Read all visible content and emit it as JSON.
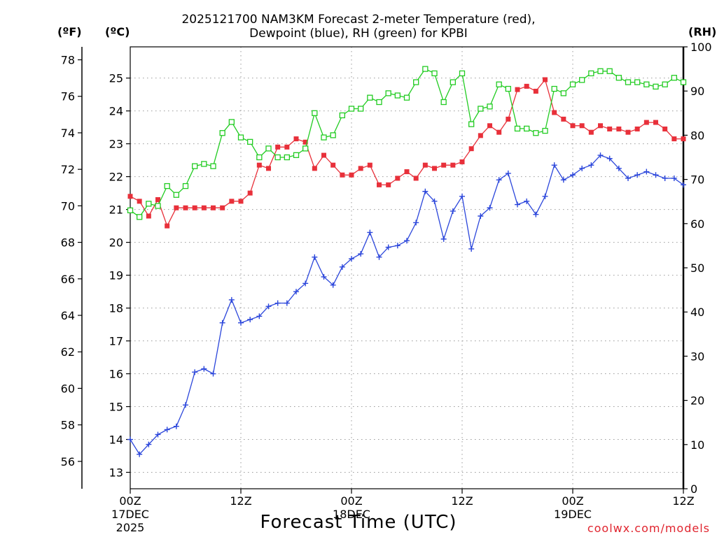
{
  "title_line1": "2025121700 NAM3KM Forecast 2-meter Temperature (red),",
  "title_line2": "Dewpoint (blue), RH (green) for KPBI",
  "unit_f": "(ºF)",
  "unit_c": "(ºC)",
  "unit_rh": "(RH)",
  "xlabel": "Forecast Time (UTC)",
  "credit": "coolwx.com/models",
  "chart_data": {
    "type": "line",
    "title": "2025121700 NAM3KM Forecast 2-meter Temperature (red), Dewpoint (blue), RH (green) for KPBI",
    "xlabel": "Forecast Time (UTC)",
    "x_unit": "forecast hour from 2025-12-17 00Z",
    "xlim": [
      0,
      60
    ],
    "x_ticks": [
      {
        "x": 0,
        "label": "00Z",
        "sub1": "17DEC",
        "sub2": "2025"
      },
      {
        "x": 12,
        "label": "12Z",
        "sub1": "",
        "sub2": ""
      },
      {
        "x": 24,
        "label": "00Z",
        "sub1": "18DEC",
        "sub2": ""
      },
      {
        "x": 36,
        "label": "12Z",
        "sub1": "",
        "sub2": ""
      },
      {
        "x": 48,
        "label": "00Z",
        "sub1": "19DEC",
        "sub2": ""
      },
      {
        "x": 60,
        "label": "12Z",
        "sub1": "",
        "sub2": ""
      }
    ],
    "axes": {
      "celsius": {
        "label": "(ºC)",
        "ylim": [
          12.5,
          25.95
        ],
        "ticks": [
          13,
          14,
          15,
          16,
          17,
          18,
          19,
          20,
          21,
          22,
          23,
          24,
          25
        ]
      },
      "fahrenheit": {
        "label": "(ºF)",
        "ylim": [
          54.5,
          78.71
        ],
        "ticks": [
          56,
          58,
          60,
          62,
          64,
          66,
          68,
          70,
          72,
          74,
          76,
          78
        ]
      },
      "rh": {
        "label": "(RH)",
        "ylim": [
          0,
          100
        ],
        "ticks": [
          0,
          10,
          20,
          30,
          40,
          50,
          60,
          70,
          80,
          90,
          100
        ]
      }
    },
    "grid": true,
    "series": [
      {
        "name": "Temperature",
        "color": "#e8303a",
        "marker": "filled-square",
        "axis": "celsius",
        "x": [
          0,
          1,
          2,
          3,
          4,
          5,
          6,
          7,
          8,
          9,
          10,
          11,
          12,
          13,
          14,
          15,
          16,
          17,
          18,
          19,
          20,
          21,
          22,
          23,
          24,
          25,
          26,
          27,
          28,
          29,
          30,
          31,
          32,
          33,
          34,
          35,
          36,
          37,
          38,
          39,
          40,
          41,
          42,
          43,
          44,
          45,
          46,
          47,
          48,
          49,
          50,
          51,
          52,
          53,
          54,
          55,
          56,
          57,
          58,
          59,
          60
        ],
        "values": [
          21.4,
          21.25,
          20.8,
          21.3,
          20.5,
          21.05,
          21.05,
          21.05,
          21.05,
          21.05,
          21.05,
          21.25,
          21.25,
          21.5,
          22.35,
          22.25,
          22.9,
          22.9,
          23.15,
          23.05,
          22.25,
          22.65,
          22.35,
          22.05,
          22.05,
          22.25,
          22.35,
          21.75,
          21.75,
          21.95,
          22.15,
          21.95,
          22.35,
          22.25,
          22.35,
          22.35,
          22.45,
          22.85,
          23.25,
          23.55,
          23.35,
          23.75,
          24.65,
          24.75,
          24.6,
          24.95,
          23.95,
          23.75,
          23.55,
          23.55,
          23.35,
          23.55,
          23.45,
          23.45,
          23.35,
          23.45,
          23.65,
          23.65,
          23.45,
          23.15,
          23.15
        ]
      },
      {
        "name": "Dewpoint",
        "color": "#2b46db",
        "marker": "plus",
        "axis": "celsius",
        "x": [
          0,
          1,
          2,
          3,
          4,
          5,
          6,
          7,
          8,
          9,
          10,
          11,
          12,
          13,
          14,
          15,
          16,
          17,
          18,
          19,
          20,
          21,
          22,
          23,
          24,
          25,
          26,
          27,
          28,
          29,
          30,
          31,
          32,
          33,
          34,
          35,
          36,
          37,
          38,
          39,
          40,
          41,
          42,
          43,
          44,
          45,
          46,
          47,
          48,
          49,
          50,
          51,
          52,
          53,
          54,
          55,
          56,
          57,
          58,
          59,
          60
        ],
        "values": [
          14.0,
          13.55,
          13.85,
          14.15,
          14.3,
          14.4,
          15.05,
          16.05,
          16.15,
          16.0,
          17.55,
          18.25,
          17.55,
          17.65,
          17.75,
          18.05,
          18.15,
          18.15,
          18.5,
          18.75,
          19.55,
          18.95,
          18.7,
          19.25,
          19.5,
          19.65,
          20.3,
          19.55,
          19.85,
          19.9,
          20.05,
          20.6,
          21.55,
          21.25,
          20.1,
          20.95,
          21.4,
          19.8,
          20.8,
          21.05,
          21.9,
          22.1,
          21.15,
          21.25,
          20.85,
          21.4,
          22.35,
          21.9,
          22.05,
          22.25,
          22.35,
          22.65,
          22.55,
          22.25,
          21.95,
          22.05,
          22.15,
          22.05,
          21.95,
          21.95,
          21.75
        ]
      },
      {
        "name": "RH",
        "color": "#22cc22",
        "marker": "open-square",
        "axis": "rh",
        "x": [
          0,
          1,
          2,
          3,
          4,
          5,
          6,
          7,
          8,
          9,
          10,
          11,
          12,
          13,
          14,
          15,
          16,
          17,
          18,
          19,
          20,
          21,
          22,
          23,
          24,
          25,
          26,
          27,
          28,
          29,
          30,
          31,
          32,
          33,
          34,
          35,
          36,
          37,
          38,
          39,
          40,
          41,
          42,
          43,
          44,
          45,
          46,
          47,
          48,
          49,
          50,
          51,
          52,
          53,
          54,
          55,
          56,
          57,
          58,
          59,
          60
        ],
        "values": [
          63.0,
          61.5,
          64.5,
          64.0,
          68.5,
          66.5,
          68.5,
          73.0,
          73.5,
          73.0,
          80.5,
          83.0,
          79.5,
          78.5,
          75.0,
          77.0,
          75.0,
          75.0,
          75.5,
          77.0,
          85.0,
          79.5,
          80.0,
          84.5,
          86.0,
          86.0,
          88.5,
          87.5,
          89.5,
          89.0,
          88.5,
          92.0,
          95.0,
          94.0,
          87.5,
          92.0,
          94.0,
          82.5,
          86.0,
          86.5,
          91.5,
          90.5,
          81.5,
          81.5,
          80.5,
          81.0,
          90.5,
          89.5,
          91.5,
          92.5,
          94.0,
          94.5,
          94.5,
          93.0,
          92.0,
          92.0,
          91.5,
          91.0,
          91.5,
          93.0,
          92.0
        ]
      }
    ]
  }
}
